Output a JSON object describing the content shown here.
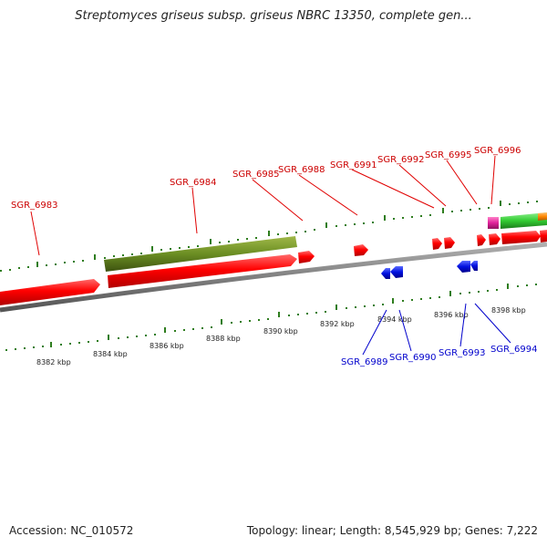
{
  "title": "Streptomyces griseus subsp. griseus NBRC 13350, complete gen...",
  "footer": {
    "accession": "Accession: NC_010572",
    "summary": "Topology: linear; Length: 8,545,929 bp; Genes: 7,222"
  },
  "colors": {
    "forward_gene": "#ff0000",
    "reverse_gene": "#0000dd",
    "highlight_gene": "#6b8e23",
    "magenta_gene": "#e0209a",
    "green_gene": "#33cc33",
    "orange_gene": "#ff8800",
    "axis": "#888888",
    "tick": "#2e7d1e",
    "forward_label": "#cc0000",
    "reverse_label": "#0000cc"
  },
  "kbp_ticks": [
    "8382 kbp",
    "8384 kbp",
    "8386 kbp",
    "8388 kbp",
    "8390 kbp",
    "8392 kbp",
    "8394 kbp",
    "8396 kbp",
    "8398 kbp"
  ],
  "forward_genes": [
    "SGR_6983",
    "SGR_6984",
    "SGR_6985",
    "SGR_6988",
    "SGR_6991",
    "SGR_6992",
    "SGR_6995",
    "SGR_6996"
  ],
  "reverse_genes": [
    "SGR_6989",
    "SGR_6990",
    "SGR_6993",
    "SGR_6994"
  ]
}
